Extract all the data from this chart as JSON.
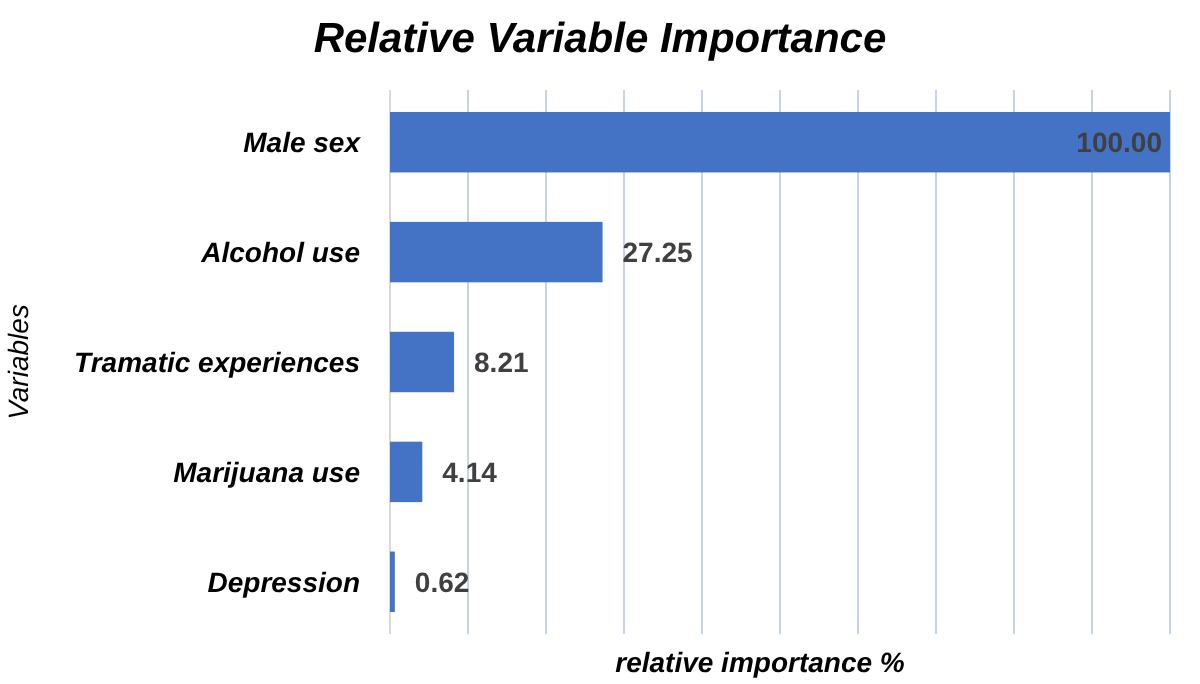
{
  "chart_data": {
    "type": "bar",
    "orientation": "horizontal",
    "title": "Relative Variable Importance",
    "xlabel": "relative importance %",
    "ylabel": "Variables",
    "categories": [
      "Male sex",
      "Alcohol use",
      "Tramatic experiences",
      "Marijuana use",
      "Depression"
    ],
    "values": [
      100,
      27.25,
      8.21,
      4.14,
      0.62
    ],
    "value_labels": [
      "100.00",
      "27.25",
      "8.21",
      "4.14",
      "0.62"
    ],
    "color": "#4472c4",
    "xlim": [
      0,
      100
    ],
    "xticks": [
      {
        "value": 0,
        "label": null
      },
      {
        "value": 10,
        "label": null
      },
      {
        "value": 20,
        "label": null
      },
      {
        "value": 30,
        "label": null
      },
      {
        "value": 40,
        "label": null
      },
      {
        "value": 50,
        "label": null
      },
      {
        "value": 60,
        "label": null
      },
      {
        "value": 70,
        "label": null
      },
      {
        "value": 80,
        "label": null
      },
      {
        "value": 90,
        "label": null
      },
      {
        "value": 100,
        "label": null
      }
    ],
    "grid": "x",
    "tick_labels": "y"
  }
}
